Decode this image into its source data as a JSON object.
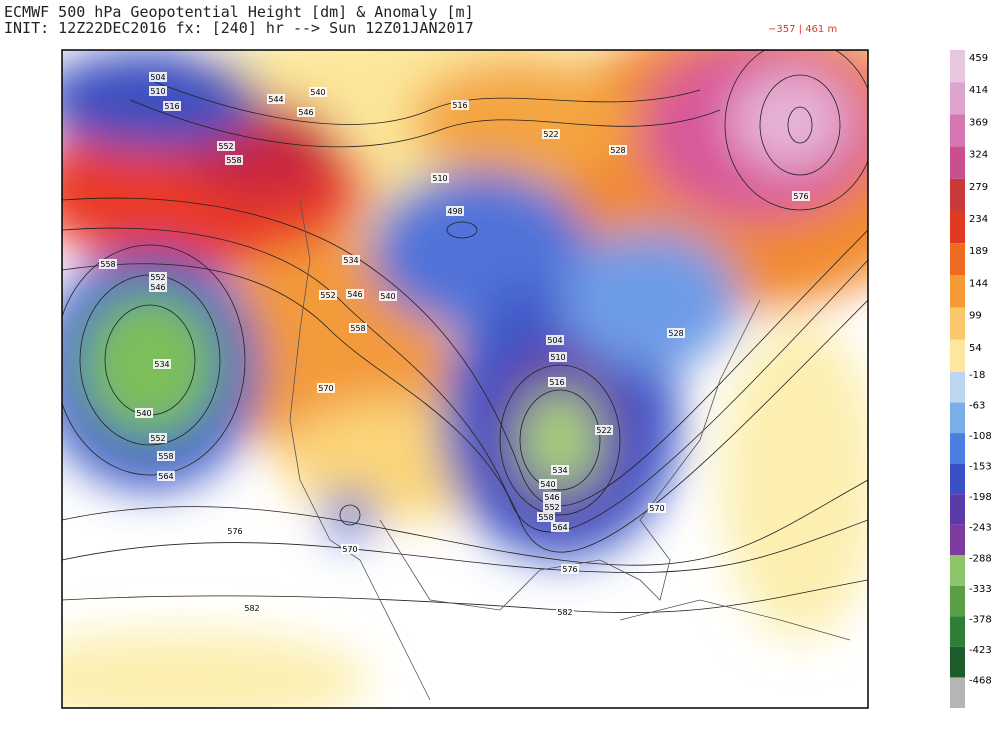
{
  "header": {
    "title_line_1": "ECMWF 500 hPa Geopotential Height [dm] & Anomaly [m]",
    "title_line_2": "INIT: 12Z22DEC2016 fx: [240] hr --> Sun 12Z01JAN2017",
    "anomaly_range": "−357 | 461 m"
  },
  "colorbar": {
    "labels": [
      459,
      414,
      369,
      324,
      279,
      234,
      189,
      144,
      99,
      54,
      -18,
      -63,
      -108,
      -153,
      -198,
      -243,
      -288,
      -333,
      -378,
      -423,
      -468
    ]
  },
  "map": {
    "contour_labels": [
      "504",
      "510",
      "516",
      "544",
      "540",
      "546",
      "552",
      "558",
      "516",
      "522",
      "528",
      "576",
      "534",
      "552",
      "546",
      "540",
      "558",
      "558",
      "552",
      "546",
      "534",
      "540",
      "552",
      "558",
      "564",
      "570",
      "504",
      "510",
      "516",
      "522",
      "534",
      "540",
      "546",
      "552",
      "558",
      "564",
      "570",
      "576",
      "570",
      "576",
      "582",
      "582",
      "528",
      "498",
      "510"
    ]
  }
}
